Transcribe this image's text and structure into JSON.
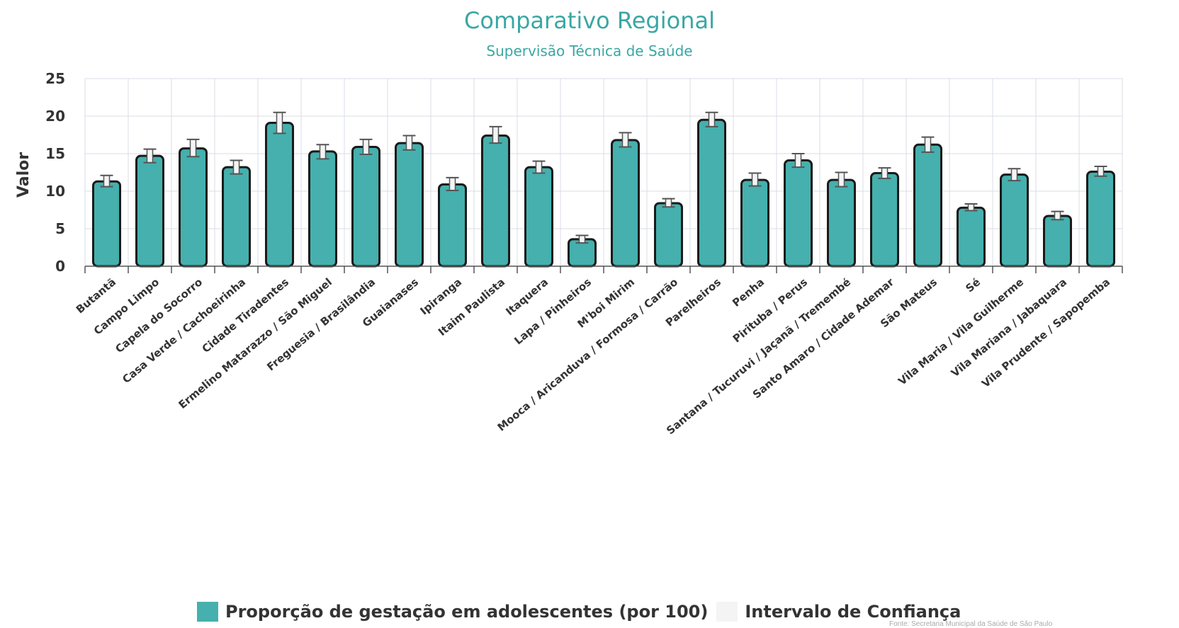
{
  "chart_data": {
    "type": "bar",
    "title": "Comparativo Regional",
    "subtitle": "Supervisão Técnica de Saúde",
    "ylabel": "Valor",
    "ylim": [
      0,
      25
    ],
    "yticks": [
      0,
      5,
      10,
      15,
      20,
      25
    ],
    "grid": true,
    "legend_position": "bottom",
    "categories": [
      "Butantã",
      "Campo Limpo",
      "Capela do Socorro",
      "Casa Verde / Cachoeirinha",
      "Cidade Tiradentes",
      "Ermelino Matarazzo / São Miguel",
      "Freguesia / Brasilândia",
      "Guaianases",
      "Ipiranga",
      "Itaim Paulista",
      "Itaquera",
      "Lapa / Pinheiros",
      "M'boi Mirim",
      "Mooca / Aricanduva / Formosa / Carrão",
      "Parelheiros",
      "Penha",
      "Pirituba / Perus",
      "Santana / Tucuruvi / Jaçanã / Tremembé",
      "Santo Amaro / Cidade Ademar",
      "São Mateus",
      "Sé",
      "Vila Maria / Vila Guilherme",
      "Vila Mariana / Jabaquara",
      "Vila Prudente / Sapopemba"
    ],
    "series": [
      {
        "name": "Proporção de gestação em adolescentes (por 100)",
        "color": "#45b0ad",
        "values": [
          11.3,
          14.7,
          15.7,
          13.2,
          19.1,
          15.3,
          15.9,
          16.4,
          10.9,
          17.4,
          13.2,
          3.6,
          16.8,
          8.4,
          19.5,
          11.5,
          14.1,
          11.5,
          12.4,
          16.2,
          7.8,
          12.2,
          6.7,
          12.6
        ]
      },
      {
        "name": "Intervalo de Confiança",
        "color": "#f4f4f4",
        "lower": [
          10.6,
          13.8,
          14.6,
          12.3,
          17.7,
          14.3,
          14.9,
          15.5,
          10.1,
          16.4,
          12.4,
          3.1,
          15.9,
          7.9,
          18.6,
          10.7,
          13.2,
          10.6,
          11.7,
          15.2,
          7.4,
          11.4,
          6.2,
          12.0
        ],
        "upper": [
          12.1,
          15.6,
          16.9,
          14.1,
          20.5,
          16.2,
          16.9,
          17.4,
          11.8,
          18.6,
          14.0,
          4.1,
          17.8,
          9.0,
          20.5,
          12.4,
          15.0,
          12.5,
          13.1,
          17.2,
          8.3,
          13.0,
          7.3,
          13.3
        ]
      }
    ]
  },
  "credit": "Fonte: Secretaria Municipal da Saúde de São Paulo"
}
